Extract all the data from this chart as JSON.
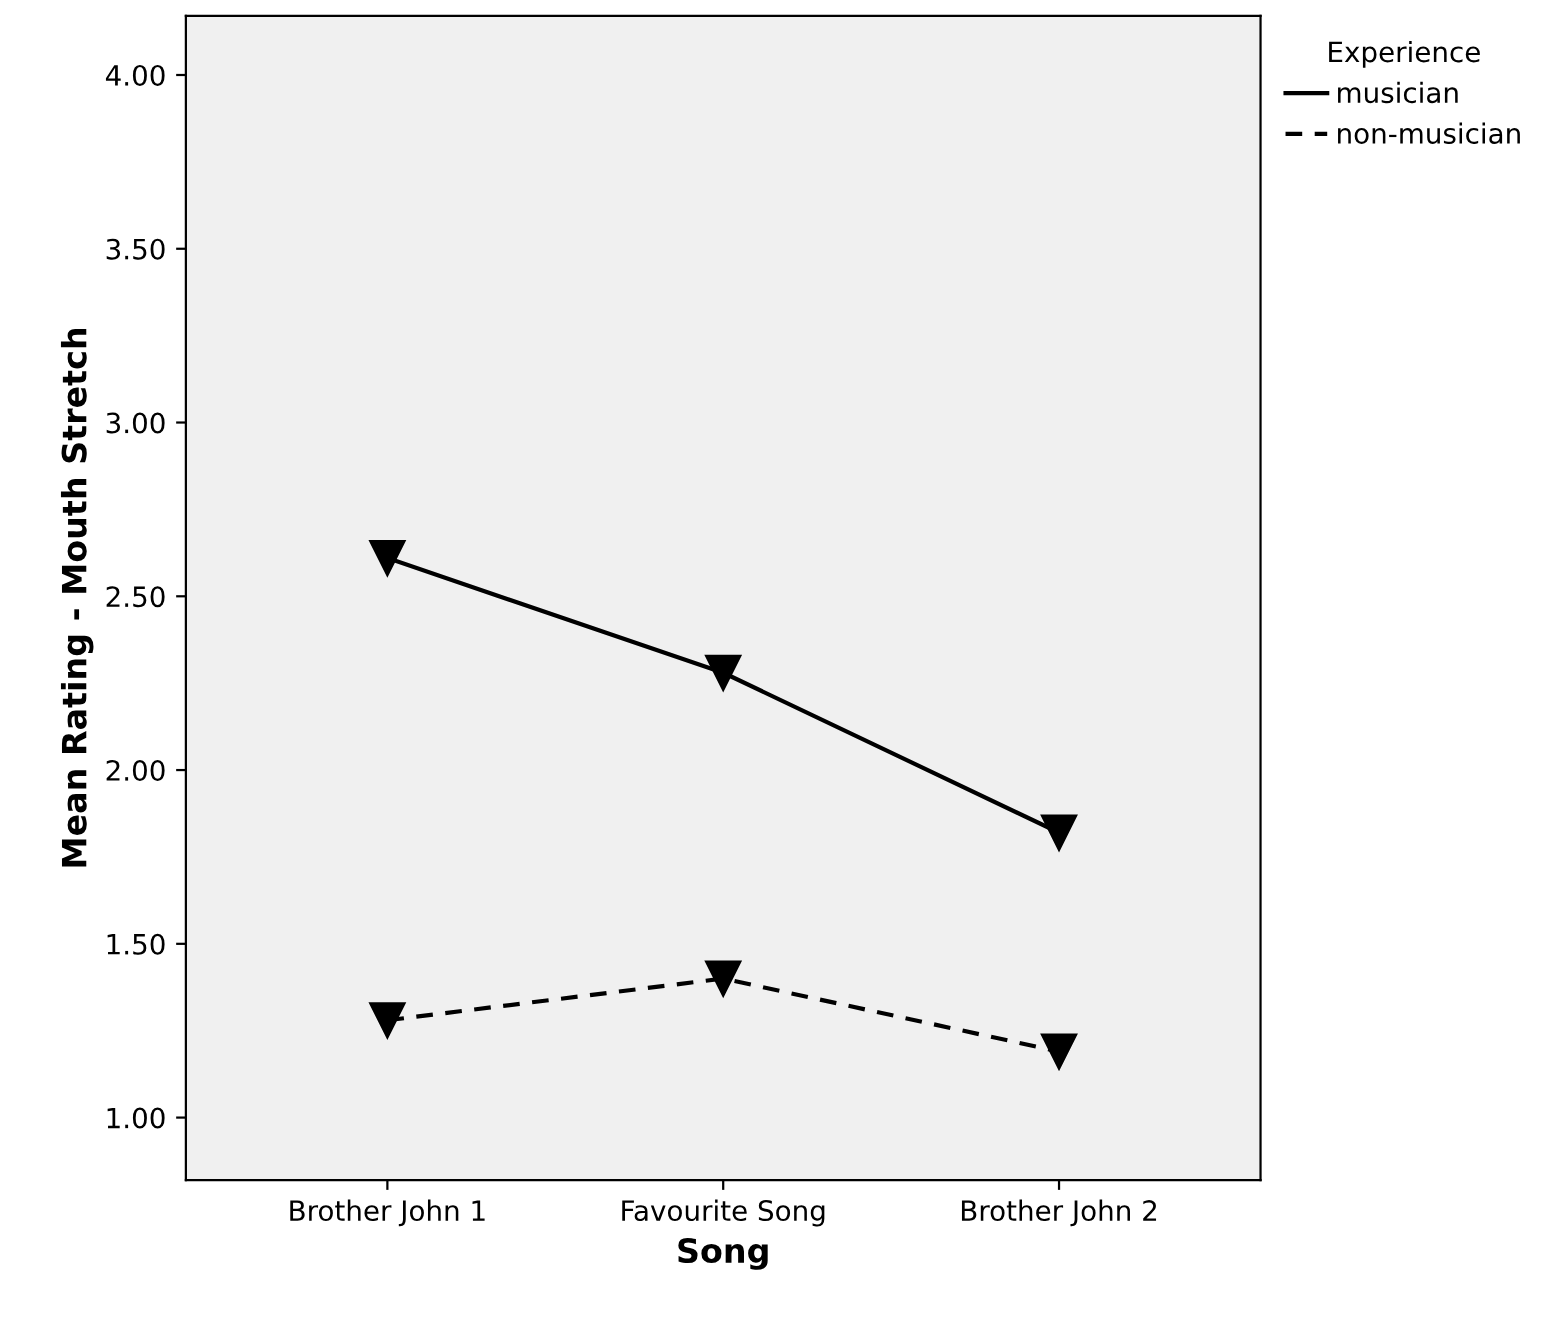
{
  "chart_data": {
    "type": "line",
    "xlabel": "Song",
    "ylabel": "Mean Rating - Mouth Stretch",
    "legend_title": "Experience",
    "categories": [
      "Brother John 1",
      "Favourite Song",
      "Brother John 2"
    ],
    "series": [
      {
        "name": "musician",
        "color": "#000000",
        "line_style": "solid",
        "values": [
          2.61,
          2.28,
          1.82
        ]
      },
      {
        "name": "non-musician",
        "color": "#000000",
        "line_style": "dashed",
        "values": [
          1.28,
          1.4,
          1.19
        ]
      }
    ],
    "marker": "triangle",
    "ylim": [
      0.82,
      4.17
    ],
    "yticks": [
      {
        "value": 1,
        "label": "1.00"
      },
      {
        "value": 1.5,
        "label": "1.50"
      },
      {
        "value": 2,
        "label": "2.00"
      },
      {
        "value": 2.5,
        "label": "2.50"
      },
      {
        "value": 3,
        "label": "3.00"
      },
      {
        "value": 3.5,
        "label": "3.50"
      },
      {
        "value": 4,
        "label": "4.00"
      }
    ],
    "grid": false,
    "legend": "top right"
  }
}
